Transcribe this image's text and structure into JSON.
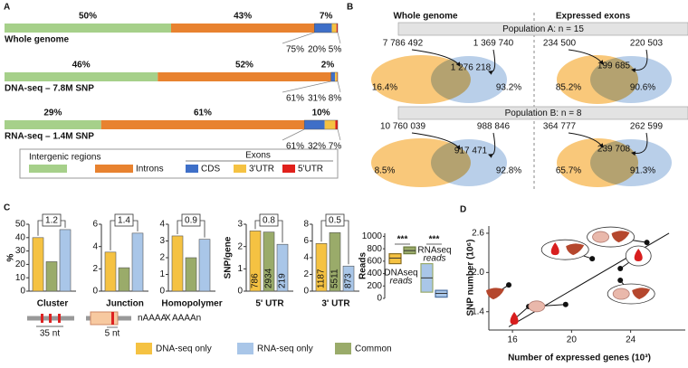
{
  "panel_a": {
    "label": "A",
    "rows": [
      {
        "name": "Whole genome",
        "values": [
          50,
          43,
          7
        ],
        "value_labels": [
          "50%",
          "43%",
          "7%"
        ],
        "exon_values": [
          75,
          20,
          5
        ],
        "exon_labels": [
          "75%",
          "20%",
          "5%"
        ]
      },
      {
        "name": "DNA-seq – 7.8M SNP",
        "values": [
          46,
          52,
          2
        ],
        "value_labels": [
          "46%",
          "52%",
          "2%"
        ],
        "exon_values": [
          61,
          31,
          8
        ],
        "exon_labels": [
          "61%",
          "31%",
          "8%"
        ]
      },
      {
        "name": "RNA-seq – 1.4M SNP",
        "values": [
          29,
          61,
          10
        ],
        "value_labels": [
          "29%",
          "61%",
          "10%"
        ],
        "exon_values": [
          61,
          32,
          7
        ],
        "exon_labels": [
          "61%",
          "32%",
          "7%"
        ]
      }
    ],
    "region_colors": [
      "#a6d08a",
      "#e8822f"
    ],
    "exon_colors": [
      "#3e6fc8",
      "#f5c242",
      "#e0201b"
    ],
    "legend": {
      "regions": [
        "Intergenic regions",
        "Introns"
      ],
      "exons_title": "Exons",
      "exons": [
        "CDS",
        "3'UTR",
        "5'UTR"
      ]
    }
  },
  "panel_b": {
    "label": "B",
    "columns": [
      "Whole genome",
      "Expressed exons"
    ],
    "populations": [
      {
        "title": "Population A: n = 15",
        "venns": [
          {
            "left": "7 786 492",
            "right": "1 369 740",
            "overlap": "1 276 218",
            "left_pct": "16.4%",
            "right_pct": "93.2%"
          },
          {
            "left": "234 500",
            "right": "220 503",
            "overlap": "199 685",
            "left_pct": "85.2%",
            "right_pct": "90.6%"
          }
        ]
      },
      {
        "title": "Population B: n = 8",
        "venns": [
          {
            "left": "10 760 039",
            "right": "988 846",
            "overlap": "917 471",
            "left_pct": "8.5%",
            "right_pct": "92.8%"
          },
          {
            "left": "364 777",
            "right": "262 599",
            "overlap": "239 708",
            "left_pct": "65.7%",
            "right_pct": "91.3%"
          }
        ]
      }
    ]
  },
  "panel_c": {
    "label": "C",
    "type": "bar",
    "series": [
      {
        "name": "DNA-seq only",
        "color": "#f5c242"
      },
      {
        "name": "RNA-seq only",
        "color": "#a9c6e8"
      },
      {
        "name": "Common",
        "color": "#9aab6a"
      }
    ],
    "charts": [
      {
        "title": "Cluster",
        "ylabel": "%",
        "ylim": [
          0,
          50
        ],
        "yticks": [
          0,
          10,
          20,
          30,
          40,
          50
        ],
        "values": [
          40,
          46,
          22
        ],
        "ratio": "1.2"
      },
      {
        "title": "Junction",
        "ylim": [
          0,
          6
        ],
        "yticks": [
          0,
          2,
          4,
          6
        ],
        "values": [
          3.5,
          5.2,
          2.1
        ],
        "ratio": "1.4"
      },
      {
        "title": "Homopolymer",
        "ylim": [
          0,
          4
        ],
        "yticks": [
          0,
          1,
          2,
          3,
          4
        ],
        "values": [
          3.3,
          3.1,
          2.0
        ],
        "ratio": "0.9"
      },
      {
        "title": "5' UTR",
        "ylabel": "SNP/gene",
        "ylim": [
          0,
          3
        ],
        "yticks": [
          0,
          1,
          2,
          3
        ],
        "values": [
          2.7,
          2.1,
          2.65
        ],
        "ratio": "0.8",
        "counts": [
          "786",
          "219",
          "2934"
        ]
      },
      {
        "title": "3' UTR",
        "ylim": [
          0,
          8
        ],
        "yticks": [
          0,
          2,
          4,
          6,
          8
        ],
        "values": [
          5.7,
          3.0,
          7.0
        ],
        "ratio": "0.5",
        "counts": [
          "1187",
          "873",
          "5511"
        ]
      }
    ],
    "reads": {
      "ylabel": "Reads",
      "ylim": [
        0,
        1050
      ],
      "yticks": [
        0,
        200,
        400,
        600,
        800,
        1000
      ],
      "boxes": [
        {
          "q1": 560,
          "median": 650,
          "q3": 720
        },
        {
          "q1": 720,
          "median": 770,
          "q3": 830
        },
        {
          "q1": 100,
          "median": 330,
          "q3": 560
        },
        {
          "q1": 20,
          "median": 80,
          "q3": 130
        }
      ],
      "stars": [
        "***",
        "***"
      ],
      "dna_label": [
        "DNAseq",
        "reads"
      ],
      "rna_label": [
        "RNAseq",
        "reads"
      ]
    },
    "schematic": {
      "cluster": "35 nt",
      "junction": "5 nt",
      "homopolymer": [
        "nAAAA",
        "X",
        "AAAAn"
      ]
    }
  },
  "panel_d": {
    "label": "D",
    "type": "scatter",
    "xlabel": "Number of expressed genes (10³)",
    "ylabel": "SNP number (10⁶)",
    "xlim": [
      14.4,
      27.7
    ],
    "ylim": [
      1.12,
      2.71
    ],
    "xticks": [
      16,
      20,
      24
    ],
    "yticks": [
      1.4,
      {
        "value": 2,
        "label": "2.0"
      },
      2.6
    ],
    "x": [
      17.1,
      19.6,
      15.75,
      21.4,
      23.3,
      23.3,
      25.1
    ],
    "y": [
      1.48,
      1.51,
      1.81,
      2.21,
      2.06,
      1.88,
      2.46
    ],
    "trend_x": [
      15.75,
      26.6
    ],
    "trend_y": [
      1.17,
      2.6
    ]
  }
}
